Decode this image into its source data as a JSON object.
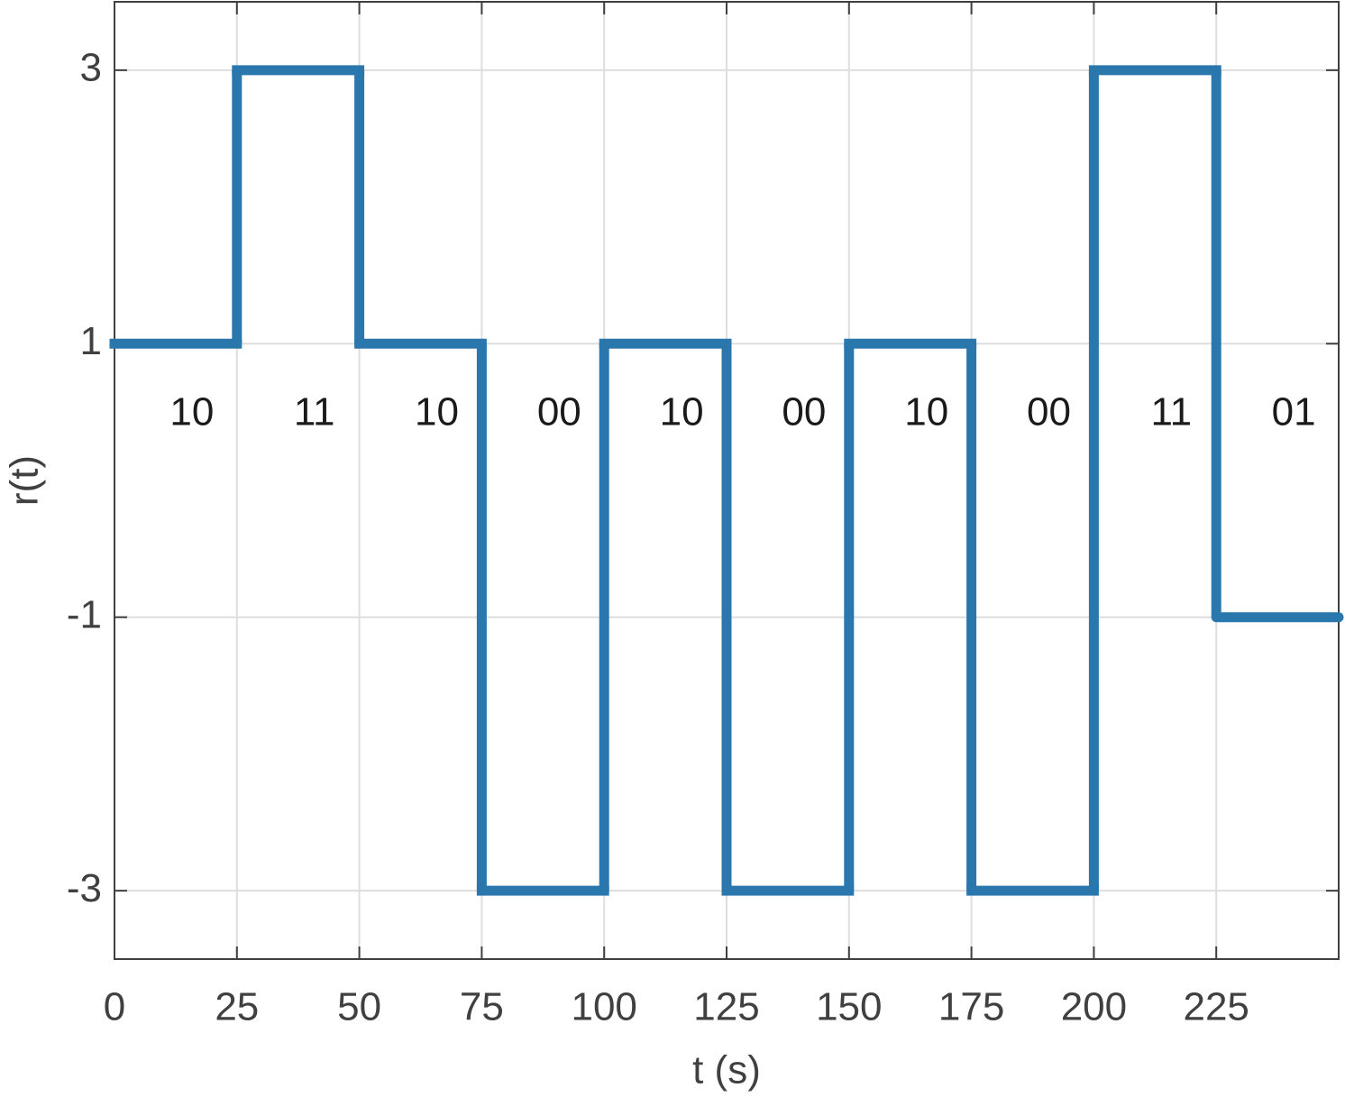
{
  "chart_data": {
    "type": "step",
    "xlabel": "t (s)",
    "ylabel": "r(t)",
    "x": [
      0,
      25,
      50,
      75,
      100,
      125,
      150,
      175,
      200,
      225
    ],
    "values": [
      1,
      3,
      1,
      -3,
      1,
      -3,
      1,
      -3,
      3,
      -1
    ],
    "annotations": [
      "10",
      "11",
      "10",
      "00",
      "10",
      "00",
      "10",
      "00",
      "11",
      "01"
    ],
    "color": "#2a77ad",
    "xlim": [
      0,
      250
    ],
    "xticks": [
      0,
      25,
      50,
      75,
      100,
      125,
      150,
      175,
      200,
      225
    ],
    "ylim": [
      -3.5,
      3.5
    ],
    "yticks": [
      -3,
      -1,
      1,
      3
    ],
    "grid": true
  }
}
